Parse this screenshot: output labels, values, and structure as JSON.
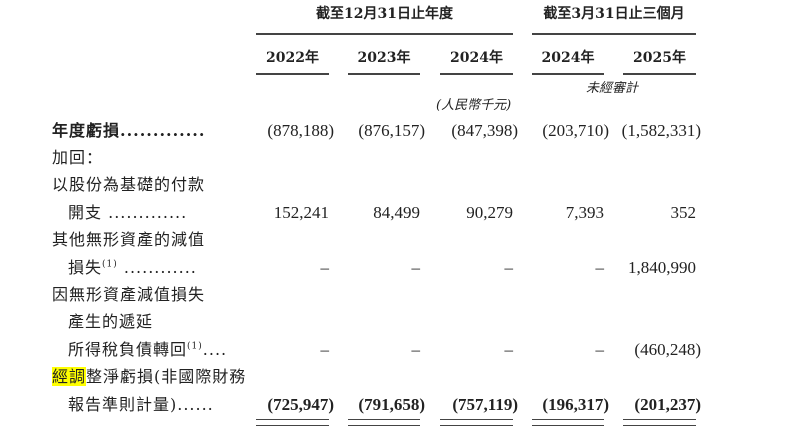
{
  "header": {
    "group_year": "截至12月31日止年度",
    "group_quarter": "截至3月31日止三個月",
    "years": [
      "2022年",
      "2023年",
      "2024年",
      "2024年",
      "2025年"
    ],
    "unaudited": "未經審計",
    "currency": "(人民幣千元)"
  },
  "rows": [
    {
      "label": "年度虧損",
      "dots": ".............",
      "bold": true,
      "indent": false,
      "values": [
        "(878,188)",
        "(876,157)",
        "(847,398)",
        "(203,710)",
        "(1,582,331)"
      ]
    },
    {
      "label": "加回：",
      "indent": false,
      "values": []
    },
    {
      "label": "以股份為基礎的付款",
      "indent": false,
      "values": []
    },
    {
      "label": "開支",
      "dots": " .............",
      "indent": true,
      "values": [
        "152,241",
        "84,499",
        "90,279",
        "7,393",
        "352"
      ]
    },
    {
      "label": "其他無形資產的減值",
      "indent": false,
      "values": []
    },
    {
      "label": "損失",
      "sup": "(1)",
      "dots": " ............",
      "indent": true,
      "values": [
        "–",
        "–",
        "–",
        "–",
        "1,840,990"
      ]
    },
    {
      "label": "因無形資產減值損失",
      "indent": false,
      "values": []
    },
    {
      "label": "產生的遞延",
      "indent": true,
      "values": []
    },
    {
      "label": "所得稅負債轉回",
      "sup": "(1)",
      "dots": "....",
      "indent": true,
      "values": [
        "–",
        "–",
        "–",
        "–",
        "(460,248)"
      ]
    },
    {
      "label_highlight": "經調",
      "label": "整淨虧損(非國際財務",
      "indent": false,
      "values": []
    },
    {
      "label": "報告準則計量)",
      "dots": "......",
      "indent": true,
      "bold_values": true,
      "values": [
        "(725,947)",
        "(791,658)",
        "(757,119)",
        "(196,317)",
        "(201,237)"
      ]
    }
  ],
  "colors": {
    "highlight": "#ffff00",
    "text": "#222222",
    "rule": "#444444"
  }
}
